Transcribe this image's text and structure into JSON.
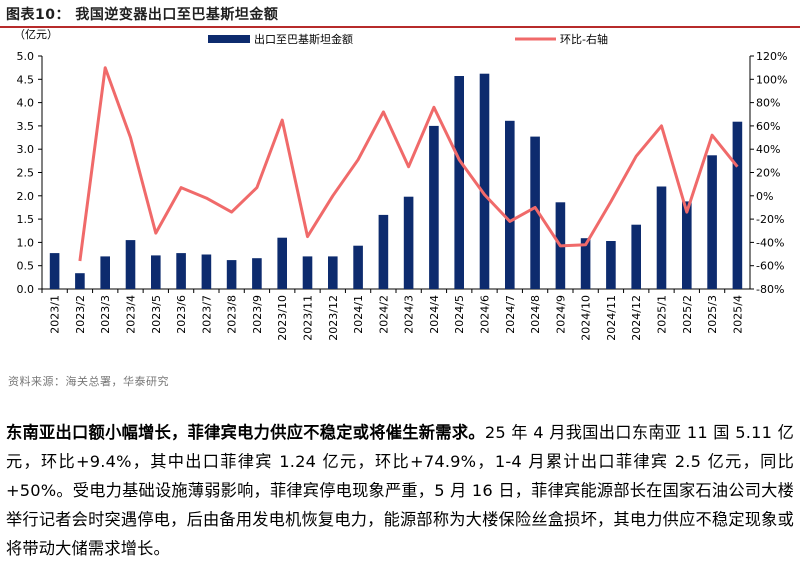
{
  "figure": {
    "title": "图表10：  我国逆变器出口至巴基斯坦金额"
  },
  "source": "资料来源：海关总署，华泰研究",
  "paragraph": {
    "lead": "东南亚出口额小幅增长，菲律宾电力供应不稳定或将催生新需求。",
    "body": "25 年 4 月我国出口东南亚 11 国 5.11 亿元，环比+9.4%，其中出口菲律宾 1.24 亿元，环比+74.9%，1-4 月累计出口菲律宾 2.5 亿元，同比+50%。受电力基础设施薄弱影响，菲律宾停电现象严重，5 月 16 日，菲律宾能源部长在国家石油公司大楼举行记者会时突遇停电，后由备用发电机恢复电力，能源部称为大楼保险丝盒损坏，其电力供应不稳定现象或将带动大储需求增长。"
  },
  "colors": {
    "bar": "#0d2b6e",
    "line": "#f06a6a",
    "rule": "#b72b2b"
  },
  "chart_data": {
    "type": "bar+line",
    "y_left_unit": "（亿元）",
    "categories": [
      "2023/1",
      "2023/2",
      "2023/3",
      "2023/4",
      "2023/5",
      "2023/6",
      "2023/7",
      "2023/8",
      "2023/9",
      "2023/10",
      "2023/11",
      "2023/12",
      "2024/1",
      "2024/2",
      "2024/3",
      "2024/4",
      "2024/5",
      "2024/6",
      "2024/7",
      "2024/8",
      "2024/9",
      "2024/10",
      "2024/11",
      "2024/12",
      "2025/1",
      "2025/2",
      "2025/3",
      "2025/4"
    ],
    "series": [
      {
        "name": "出口至巴基斯坦金额",
        "kind": "bar",
        "axis": "left",
        "values": [
          0.77,
          0.34,
          0.7,
          1.05,
          0.72,
          0.77,
          0.74,
          0.62,
          0.66,
          1.1,
          0.7,
          0.7,
          0.93,
          1.59,
          1.98,
          3.5,
          4.57,
          4.62,
          3.61,
          3.27,
          1.86,
          1.09,
          1.03,
          1.38,
          2.2,
          1.88,
          2.87,
          3.59
        ]
      },
      {
        "name": "环比-右轴",
        "kind": "line",
        "axis": "right",
        "values": [
          null,
          -56,
          110,
          50,
          -32,
          7,
          -2,
          -14,
          7,
          65,
          -35,
          0,
          31,
          72,
          25,
          76,
          31,
          1,
          -22,
          -10,
          -43,
          -42,
          -5,
          34,
          60,
          -14,
          52,
          25
        ]
      }
    ],
    "y_left": {
      "min": 0,
      "max": 5.0,
      "ticks": [
        "0.0",
        "0.5",
        "1.0",
        "1.5",
        "2.0",
        "2.5",
        "3.0",
        "3.5",
        "4.0",
        "4.5",
        "5.0"
      ]
    },
    "y_right": {
      "min": -80,
      "max": 120,
      "ticks": [
        "-80%",
        "-60%",
        "-40%",
        "-20%",
        "0%",
        "20%",
        "40%",
        "60%",
        "80%",
        "100%",
        "120%"
      ]
    },
    "grid": false,
    "legend_position": "top"
  }
}
